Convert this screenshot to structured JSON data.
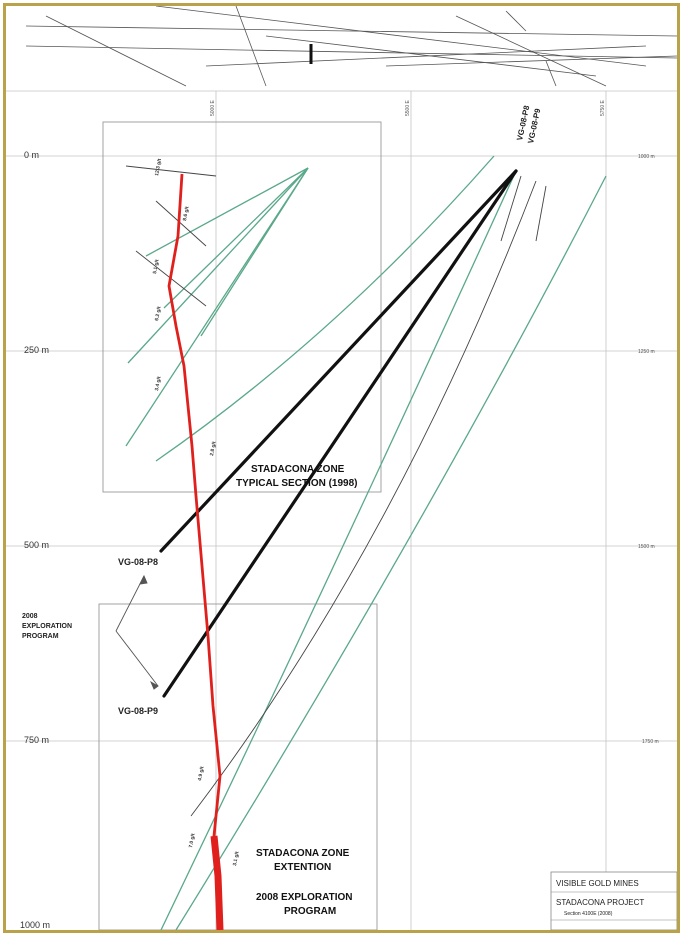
{
  "figure": {
    "depth_labels": [
      "0 m",
      "250 m",
      "500 m",
      "750 m",
      "1000 m"
    ],
    "elevation_labels": [
      "1000 m",
      "1250 m",
      "1500 m",
      "1750 m"
    ],
    "easting_labels": [
      "5000 E",
      "5500 E",
      "5750 E"
    ],
    "zones": {
      "typical_section_line1": "STADACONA ZONE",
      "typical_section_line2": "TYPICAL SECTION (1998)",
      "extension_line1": "STADACONA ZONE",
      "extension_line2": "EXTENTION",
      "exploration2008_line1": "2008 EXPLORATION",
      "exploration2008_line2": "PROGRAM"
    },
    "program_label": [
      "2008",
      "EXPLORATION",
      "PROGRAM"
    ],
    "holes": {
      "upper": "VG-08-P8",
      "lower": "VG-08-P9",
      "collar_top": "VG-08-P8",
      "collar_bottom": "VG-08-P9"
    },
    "title_block": {
      "company": "VISIBLE GOLD MINES",
      "project": "STADACONA PROJECT",
      "section": "Section 4100E (2008)"
    },
    "colors": {
      "frame": "#b9a24a",
      "zone_trace": "#e0201c",
      "historic_holes": "#5aa88a",
      "planned_holes": "#111111",
      "grid": "#bbbbbb"
    }
  }
}
